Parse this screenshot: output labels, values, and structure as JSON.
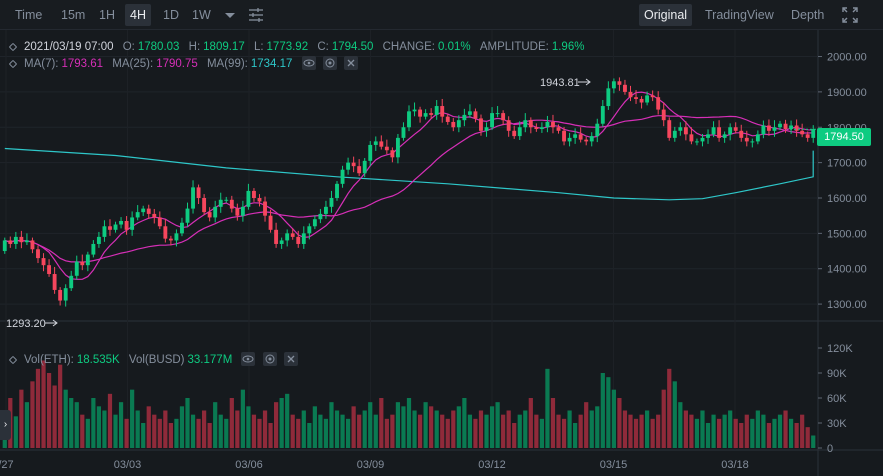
{
  "toolbar": {
    "time_label": "Time",
    "intervals": [
      "15m",
      "1H",
      "4H",
      "1D",
      "1W"
    ],
    "active_interval": "4H",
    "views": [
      "Original",
      "TradingView",
      "Depth"
    ],
    "active_view": "Original"
  },
  "legend": {
    "date": "2021/03/19 07:00",
    "o_label": "O:",
    "o": "1780.03",
    "h_label": "H:",
    "h": "1809.17",
    "l_label": "L:",
    "l": "1773.92",
    "c_label": "C:",
    "c": "1794.50",
    "change_label": "CHANGE:",
    "change": "0.01%",
    "amplitude_label": "AMPLITUDE:",
    "amplitude": "1.96%",
    "ma7_label": "MA(7):",
    "ma7": "1793.61",
    "ma25_label": "MA(25):",
    "ma25": "1790.75",
    "ma99_label": "MA(99):",
    "ma99": "1734.17"
  },
  "volume_legend": {
    "vol_eth_label": "Vol(ETH):",
    "vol_eth": "18.535K",
    "vol_busd_label": "Vol(BUSD)",
    "vol_busd": "33.177M"
  },
  "current_price_tag": "1794.50",
  "annotations": {
    "high": "1943.81",
    "low": "1293.20"
  },
  "colors": {
    "up": "#0ecb81",
    "down": "#f6465d",
    "ma7": "#e6db74",
    "ma25": "#d62fb7",
    "ma99": "#2ec7c9"
  },
  "chart_data": {
    "type": "candlestick",
    "x_ticks": [
      "/27",
      "03/03",
      "03/06",
      "03/09",
      "03/12",
      "03/15",
      "03/18"
    ],
    "price_ticks": [
      "2000.00",
      "1900.00",
      "1800.00",
      "1700.00",
      "1600.00",
      "1500.00",
      "1400.00",
      "1300.00"
    ],
    "price_tick_values": [
      2000,
      1900,
      1800,
      1700,
      1600,
      1500,
      1400,
      1300
    ],
    "price_range": [
      1255,
      2075
    ],
    "volume_ticks": [
      "120K",
      "90K",
      "60K",
      "30K",
      "0"
    ],
    "volume_tick_values": [
      120000,
      90000,
      60000,
      30000,
      0
    ],
    "volume_range": [
      0,
      120000
    ],
    "closes": [
      1480,
      1470,
      1490,
      1475,
      1480,
      1455,
      1430,
      1410,
      1385,
      1340,
      1310,
      1345,
      1380,
      1420,
      1410,
      1440,
      1470,
      1490,
      1520,
      1510,
      1525,
      1535,
      1510,
      1545,
      1560,
      1570,
      1555,
      1545,
      1520,
      1485,
      1480,
      1500,
      1530,
      1570,
      1630,
      1600,
      1560,
      1545,
      1575,
      1595,
      1595,
      1570,
      1550,
      1575,
      1620,
      1600,
      1590,
      1550,
      1510,
      1470,
      1480,
      1500,
      1490,
      1470,
      1500,
      1520,
      1540,
      1555,
      1575,
      1600,
      1640,
      1680,
      1700,
      1690,
      1670,
      1705,
      1750,
      1760,
      1745,
      1735,
      1715,
      1770,
      1800,
      1845,
      1850,
      1830,
      1840,
      1835,
      1860,
      1830,
      1815,
      1800,
      1820,
      1835,
      1845,
      1825,
      1790,
      1800,
      1840,
      1840,
      1820,
      1790,
      1775,
      1800,
      1820,
      1800,
      1795,
      1800,
      1815,
      1800,
      1790,
      1760,
      1770,
      1780,
      1765,
      1760,
      1775,
      1810,
      1860,
      1910,
      1930,
      1920,
      1900,
      1885,
      1880,
      1870,
      1890,
      1885,
      1850,
      1820,
      1770,
      1790,
      1800,
      1780,
      1760,
      1760,
      1770,
      1780,
      1800,
      1770,
      1780,
      1800,
      1790,
      1770,
      1760,
      1760,
      1780,
      1805,
      1790,
      1800,
      1810,
      1795,
      1805,
      1790,
      1780,
      1770,
      1795
    ],
    "opens": [
      1450,
      1480,
      1470,
      1490,
      1475,
      1480,
      1455,
      1430,
      1410,
      1385,
      1340,
      1310,
      1345,
      1380,
      1420,
      1410,
      1440,
      1470,
      1490,
      1520,
      1510,
      1525,
      1535,
      1510,
      1545,
      1560,
      1570,
      1555,
      1545,
      1520,
      1485,
      1480,
      1500,
      1530,
      1570,
      1630,
      1600,
      1560,
      1545,
      1575,
      1595,
      1595,
      1570,
      1550,
      1575,
      1620,
      1600,
      1590,
      1550,
      1510,
      1470,
      1480,
      1500,
      1490,
      1470,
      1500,
      1520,
      1540,
      1555,
      1575,
      1600,
      1640,
      1680,
      1700,
      1690,
      1670,
      1705,
      1750,
      1760,
      1745,
      1735,
      1715,
      1770,
      1800,
      1845,
      1850,
      1830,
      1840,
      1835,
      1860,
      1830,
      1815,
      1800,
      1820,
      1835,
      1845,
      1825,
      1790,
      1800,
      1840,
      1840,
      1820,
      1790,
      1775,
      1800,
      1820,
      1800,
      1795,
      1800,
      1815,
      1800,
      1790,
      1760,
      1770,
      1780,
      1765,
      1760,
      1775,
      1810,
      1860,
      1910,
      1930,
      1920,
      1900,
      1885,
      1880,
      1870,
      1890,
      1885,
      1850,
      1820,
      1770,
      1790,
      1800,
      1780,
      1760,
      1760,
      1770,
      1780,
      1800,
      1770,
      1780,
      1800,
      1790,
      1770,
      1760,
      1760,
      1780,
      1805,
      1790,
      1800,
      1810,
      1795,
      1805,
      1790,
      1780,
      1770
    ],
    "volumes": [
      45000,
      60000,
      38000,
      70000,
      55000,
      80000,
      95000,
      105000,
      90000,
      75000,
      100000,
      70000,
      60000,
      55000,
      40000,
      35000,
      60000,
      50000,
      45000,
      65000,
      40000,
      55000,
      35000,
      70000,
      45000,
      30000,
      50000,
      40000,
      35000,
      45000,
      30000,
      35000,
      50000,
      60000,
      40000,
      35000,
      45000,
      30000,
      55000,
      40000,
      35000,
      60000,
      45000,
      70000,
      50000,
      40000,
      35000,
      45000,
      30000,
      55000,
      60000,
      65000,
      40000,
      35000,
      45000,
      30000,
      50000,
      40000,
      35000,
      55000,
      45000,
      40000,
      35000,
      50000,
      40000,
      45000,
      55000,
      40000,
      60000,
      35000,
      40000,
      55000,
      50000,
      60000,
      45000,
      40000,
      55000,
      50000,
      45000,
      40000,
      35000,
      45000,
      50000,
      60000,
      40000,
      35000,
      45000,
      40000,
      50000,
      55000,
      40000,
      45000,
      30000,
      40000,
      45000,
      60000,
      40000,
      35000,
      95000,
      60000,
      40000,
      35000,
      45000,
      30000,
      40000,
      55000,
      45000,
      50000,
      90000,
      85000,
      70000,
      60000,
      45000,
      40000,
      35000,
      40000,
      45000,
      35000,
      40000,
      70000,
      95000,
      80000,
      55000,
      45000,
      40000,
      35000,
      45000,
      30000,
      40000,
      35000,
      40000,
      45000,
      35000,
      30000,
      40000,
      35000,
      45000,
      40000,
      30000,
      35000,
      40000,
      45000,
      35000,
      30000,
      40000,
      25000,
      15000
    ],
    "ma99_points": [
      [
        0,
        1740
      ],
      [
        20,
        1720
      ],
      [
        40,
        1685
      ],
      [
        60,
        1660
      ],
      [
        80,
        1640
      ],
      [
        100,
        1615
      ],
      [
        110,
        1600
      ],
      [
        120,
        1595
      ],
      [
        126,
        1598
      ],
      [
        132,
        1615
      ],
      [
        140,
        1640
      ],
      [
        146,
        1660
      ],
      [
        152,
        1690
      ],
      [
        158,
        1710
      ],
      [
        163,
        1725
      ],
      [
        166,
        1734
      ]
    ]
  }
}
